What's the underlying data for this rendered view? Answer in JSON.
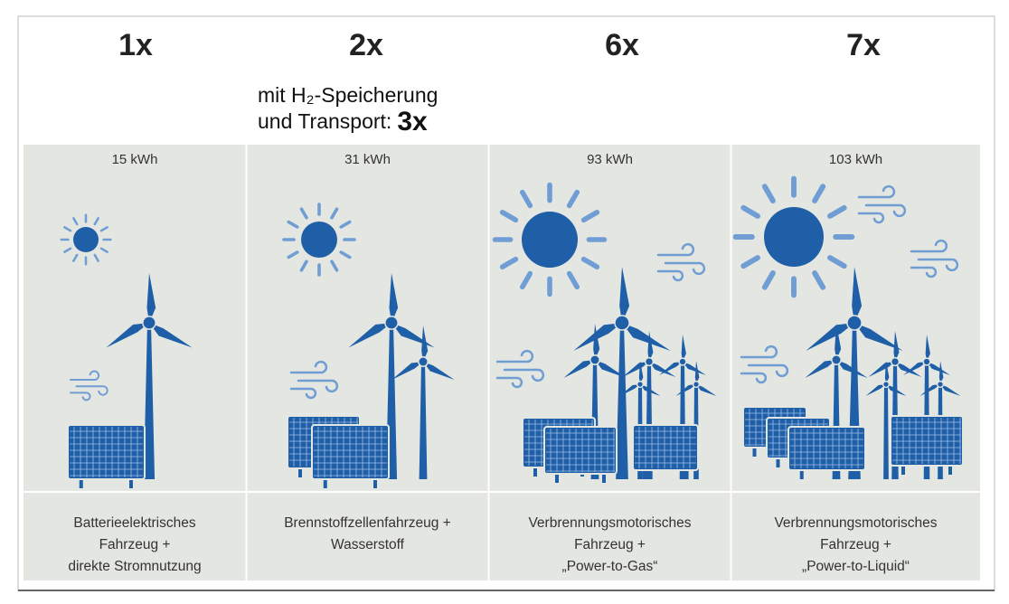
{
  "columns": [
    {
      "factor": "1x",
      "energy": "15 kWh",
      "description": [
        "Batterieelektrisches",
        "Fahrzeug +",
        "direkte Stromnutzung"
      ]
    },
    {
      "factor": "2x",
      "energy": "31 kWh",
      "description": [
        "Brennstoffzellenfahrzeug +",
        "Wasserstoff"
      ]
    },
    {
      "factor": "6x",
      "energy": "93 kWh",
      "description": [
        "Verbrennungsmotorisches",
        "Fahrzeug +",
        "„Power-to-Gas“"
      ]
    },
    {
      "factor": "7x",
      "energy": "103 kWh",
      "description": [
        "Verbrennungsmotorisches",
        "Fahrzeug +",
        "„Power-to-Liquid“"
      ]
    }
  ],
  "note": {
    "line1": "mit H₂-Speicherung",
    "line2": "und Transport:",
    "emphasis": "3x"
  }
}
